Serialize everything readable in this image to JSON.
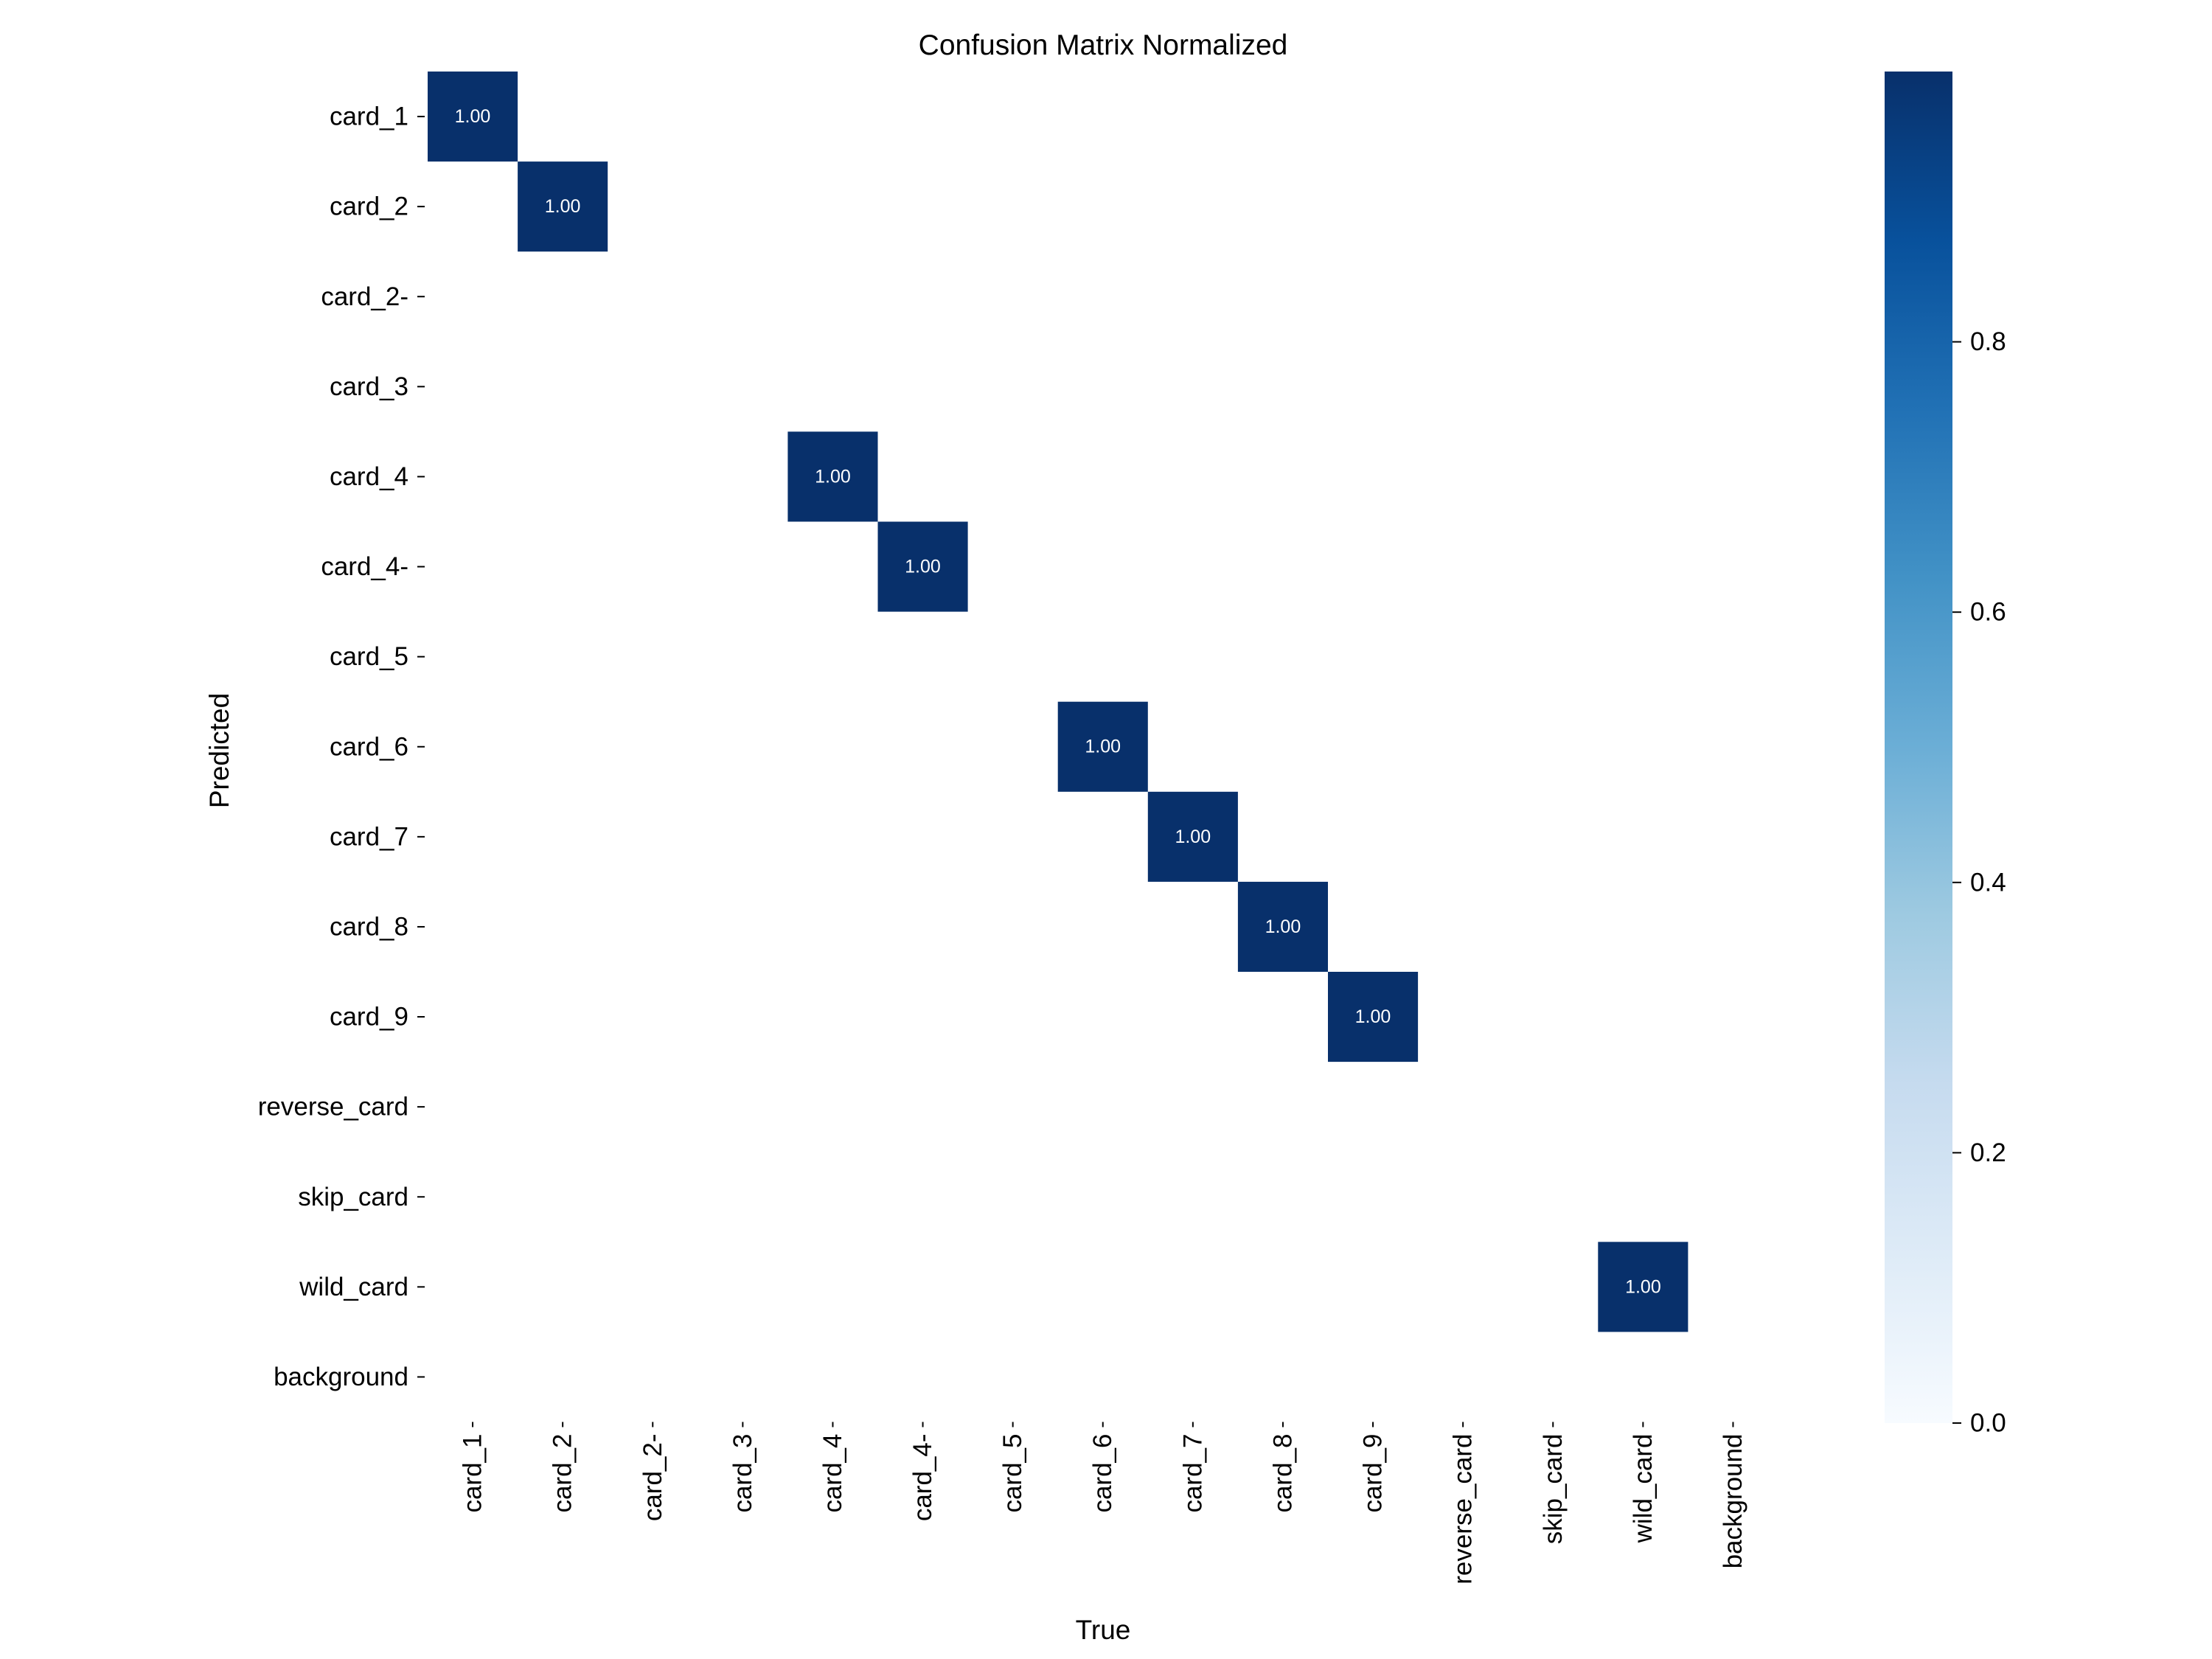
{
  "chart_data": {
    "type": "heatmap",
    "title": "Confusion Matrix Normalized",
    "xlabel": "True",
    "ylabel": "Predicted",
    "x_categories": [
      "card_1",
      "card_2",
      "card_2-",
      "card_3",
      "card_4",
      "card_4-",
      "card_5",
      "card_6",
      "card_7",
      "card_8",
      "card_9",
      "reverse_card",
      "skip_card",
      "wild_card",
      "background"
    ],
    "y_categories": [
      "card_1",
      "card_2",
      "card_2-",
      "card_3",
      "card_4",
      "card_4-",
      "card_5",
      "card_6",
      "card_7",
      "card_8",
      "card_9",
      "reverse_card",
      "skip_card",
      "wild_card",
      "background"
    ],
    "values": [
      [
        1.0,
        null,
        null,
        null,
        null,
        null,
        null,
        null,
        null,
        null,
        null,
        null,
        null,
        null,
        null
      ],
      [
        null,
        1.0,
        null,
        null,
        null,
        null,
        null,
        null,
        null,
        null,
        null,
        null,
        null,
        null,
        null
      ],
      [
        null,
        null,
        null,
        null,
        null,
        null,
        null,
        null,
        null,
        null,
        null,
        null,
        null,
        null,
        null
      ],
      [
        null,
        null,
        null,
        null,
        null,
        null,
        null,
        null,
        null,
        null,
        null,
        null,
        null,
        null,
        null
      ],
      [
        null,
        null,
        null,
        null,
        1.0,
        null,
        null,
        null,
        null,
        null,
        null,
        null,
        null,
        null,
        null
      ],
      [
        null,
        null,
        null,
        null,
        null,
        1.0,
        null,
        null,
        null,
        null,
        null,
        null,
        null,
        null,
        null
      ],
      [
        null,
        null,
        null,
        null,
        null,
        null,
        null,
        null,
        null,
        null,
        null,
        null,
        null,
        null,
        null
      ],
      [
        null,
        null,
        null,
        null,
        null,
        null,
        null,
        1.0,
        null,
        null,
        null,
        null,
        null,
        null,
        null
      ],
      [
        null,
        null,
        null,
        null,
        null,
        null,
        null,
        null,
        1.0,
        null,
        null,
        null,
        null,
        null,
        null
      ],
      [
        null,
        null,
        null,
        null,
        null,
        null,
        null,
        null,
        null,
        1.0,
        null,
        null,
        null,
        null,
        null
      ],
      [
        null,
        null,
        null,
        null,
        null,
        null,
        null,
        null,
        null,
        null,
        1.0,
        null,
        null,
        null,
        null
      ],
      [
        null,
        null,
        null,
        null,
        null,
        null,
        null,
        null,
        null,
        null,
        null,
        null,
        null,
        null,
        null
      ],
      [
        null,
        null,
        null,
        null,
        null,
        null,
        null,
        null,
        null,
        null,
        null,
        null,
        null,
        null,
        null
      ],
      [
        null,
        null,
        null,
        null,
        null,
        null,
        null,
        null,
        null,
        null,
        null,
        null,
        null,
        1.0,
        null
      ],
      [
        null,
        null,
        null,
        null,
        null,
        null,
        null,
        null,
        null,
        null,
        null,
        null,
        null,
        null,
        null
      ]
    ],
    "value_format": "0.00",
    "colorbar": {
      "range": [
        0.0,
        1.0
      ],
      "ticks": [
        0.0,
        0.2,
        0.4,
        0.6,
        0.8
      ],
      "tick_labels": [
        "0.0",
        "0.2",
        "0.4",
        "0.6",
        "0.8"
      ],
      "colormap": "Blues",
      "color_low": "#f7fbff",
      "color_high": "#08306b"
    },
    "grid": false,
    "legend": "colorbar-right"
  }
}
